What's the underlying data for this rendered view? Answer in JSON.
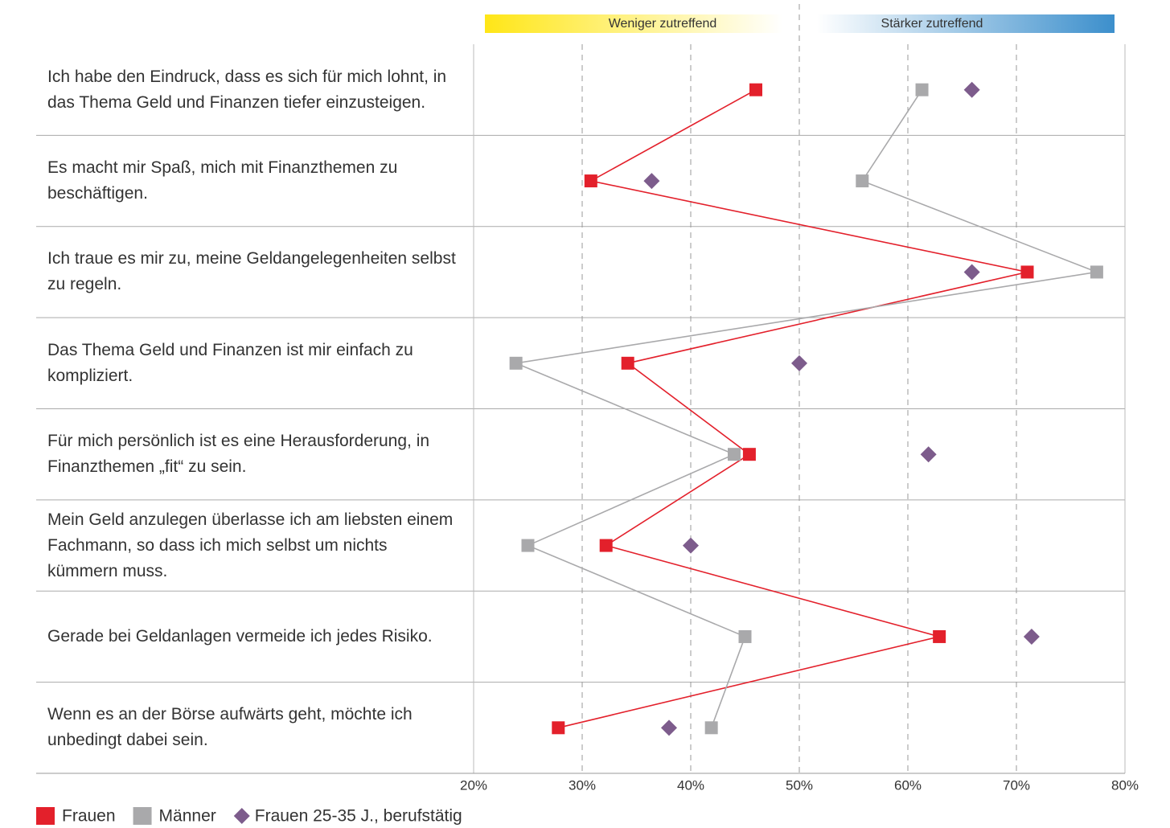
{
  "chart_data": {
    "type": "line",
    "orientation": "horizontal",
    "annotations": [
      "Weniger zutreffend",
      "Stärker zutreffend"
    ],
    "categories": [
      "Ich habe den Eindruck, dass es sich für mich lohnt, in das Thema Geld und Finanzen tiefer einzusteigen.",
      "Es macht mir Spaß, mich mit Finanzthemen zu beschäftigen.",
      "Ich traue es mir zu, meine Geldangelegenheiten selbst zu regeln.",
      "Das Thema Geld und Finanzen ist mir einfach zu kompliziert.",
      "Für mich persönlich ist es eine Herausforderung, in Finanzthemen „fit“ zu sein.",
      "Mein Geld anzulegen überlasse ich am liebsten einem Fachmann, so dass ich mich selbst um nichts kümmern muss.",
      "Gerade bei Geldanlagen vermeide ich jedes Risiko.",
      "Wenn es an der Börse aufwärts geht, möchte ich unbedingt dabei sein."
    ],
    "series": [
      {
        "name": "Frauen",
        "color": "#e3202b",
        "marker": "square",
        "line": true,
        "values": [
          46.0,
          30.8,
          71.0,
          34.2,
          45.4,
          32.2,
          62.9,
          27.8
        ]
      },
      {
        "name": "Männer",
        "color": "#a9a9ab",
        "marker": "square",
        "line": true,
        "values": [
          61.3,
          55.8,
          77.4,
          23.9,
          44.0,
          25.0,
          45.0,
          41.9
        ]
      },
      {
        "name": "Frauen 25-35 J., berufstätig",
        "color": "#7d5c8c",
        "marker": "diamond",
        "line": false,
        "values": [
          65.9,
          36.4,
          65.9,
          50.0,
          61.9,
          40.0,
          71.4,
          38.0
        ]
      }
    ],
    "xlim": [
      20,
      80
    ],
    "xticks": [
      {
        "value": 20,
        "label": "20%"
      },
      {
        "value": 30,
        "label": "30%"
      },
      {
        "value": 40,
        "label": "40%"
      },
      {
        "value": 50,
        "label": "50%"
      },
      {
        "value": 60,
        "label": "60%"
      },
      {
        "value": 70,
        "label": "70%"
      },
      {
        "value": 80,
        "label": "80%"
      }
    ],
    "grid": true,
    "legend": "bottom-left"
  }
}
